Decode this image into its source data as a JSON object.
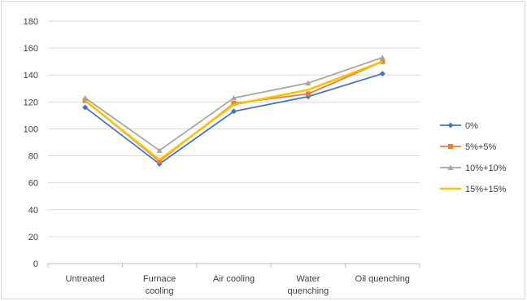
{
  "chart_data": {
    "type": "line",
    "title": "",
    "xlabel": "",
    "ylabel": "",
    "categories": [
      [
        "Untreated"
      ],
      [
        "Furnace",
        "cooling"
      ],
      [
        "Air cooling"
      ],
      [
        "Water",
        "quenching"
      ],
      [
        "Oil quenching"
      ]
    ],
    "ylim": [
      0,
      180
    ],
    "yticks": [
      0,
      20,
      40,
      60,
      80,
      100,
      120,
      140,
      160,
      180
    ],
    "grid": true,
    "legend_position": "right",
    "series": [
      {
        "name": "0%",
        "color": "#4472C4",
        "marker": "diamond",
        "values": [
          116,
          74,
          113,
          124,
          141
        ]
      },
      {
        "name": "5%+5%",
        "color": "#ED7D31",
        "marker": "square",
        "values": [
          121,
          76,
          119,
          126,
          150
        ]
      },
      {
        "name": "10%+10%",
        "color": "#A5A5A5",
        "marker": "triangle",
        "values": [
          123,
          84,
          123,
          134,
          153
        ]
      },
      {
        "name": "15%+15%",
        "color": "#FFC000",
        "marker": "none",
        "values": [
          121,
          77,
          118,
          129,
          150
        ]
      }
    ]
  }
}
